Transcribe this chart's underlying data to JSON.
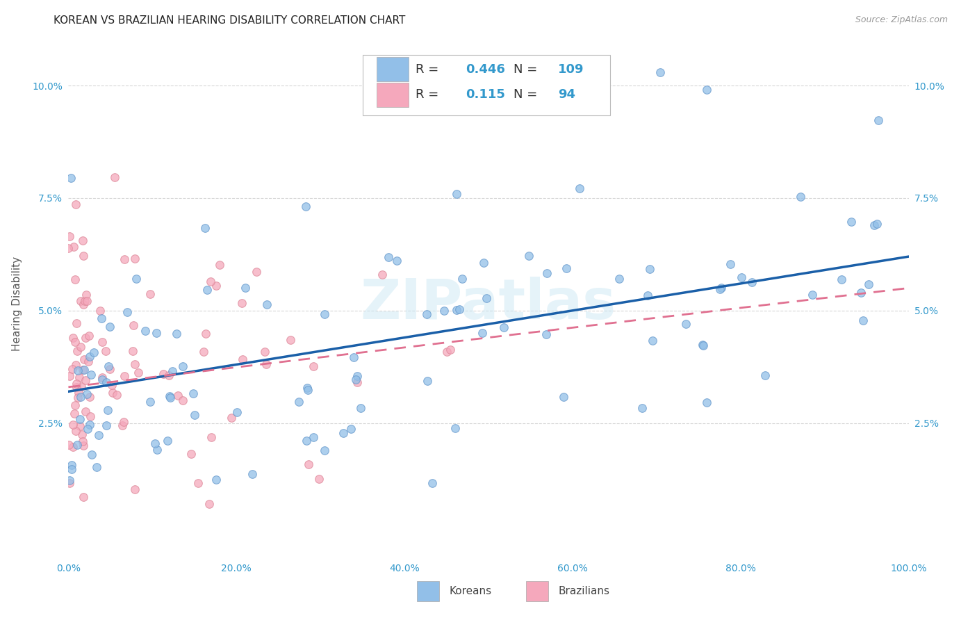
{
  "title": "KOREAN VS BRAZILIAN HEARING DISABILITY CORRELATION CHART",
  "source": "Source: ZipAtlas.com",
  "ylabel": "Hearing Disability",
  "watermark": "ZIPatlas",
  "korean_R": 0.446,
  "korean_N": 109,
  "brazilian_R": 0.115,
  "brazilian_N": 94,
  "korean_color": "#92bfe8",
  "korean_edge_color": "#6699cc",
  "brazilian_color": "#f5a8bc",
  "brazilian_edge_color": "#dd8899",
  "korean_line_color": "#1a5fa8",
  "brazilian_line_color": "#e07090",
  "legend_text_color": "#3399cc",
  "label_color": "#3399cc",
  "title_color": "#222222",
  "source_color": "#999999",
  "ylabel_color": "#555555",
  "background_color": "#ffffff",
  "grid_color": "#cccccc",
  "xlim": [
    0.0,
    1.0
  ],
  "ylim": [
    -0.005,
    0.108
  ],
  "xtick_labels": [
    "0.0%",
    "20.0%",
    "40.0%",
    "60.0%",
    "80.0%",
    "100.0%"
  ],
  "xtick_values": [
    0.0,
    0.2,
    0.4,
    0.6,
    0.8,
    1.0
  ],
  "ytick_labels": [
    "2.5%",
    "5.0%",
    "7.5%",
    "10.0%"
  ],
  "ytick_values": [
    0.025,
    0.05,
    0.075,
    0.1
  ],
  "title_fontsize": 11,
  "source_fontsize": 9,
  "tick_fontsize": 10,
  "ylabel_fontsize": 11,
  "legend_fontsize": 13,
  "watermark_fontsize": 58
}
